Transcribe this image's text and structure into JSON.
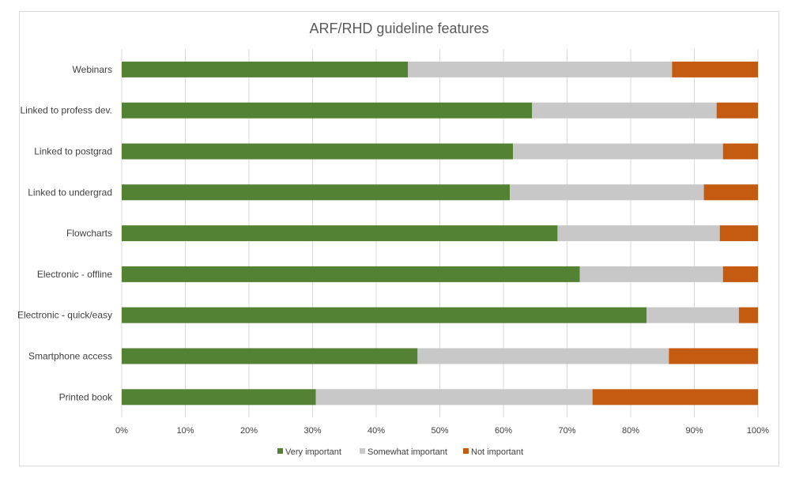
{
  "chart_data": {
    "type": "bar",
    "orientation": "horizontal",
    "stacked": "100%",
    "title": "ARF/RHD guideline features",
    "categories": [
      "Webinars",
      "Linked to profess dev.",
      "Linked to postgrad",
      "Linked to undergrad",
      "Flowcharts",
      "Electronic - offline",
      "Electronic - quick/easy",
      "Smartphone access",
      "Printed book"
    ],
    "series": [
      {
        "name": "Very important",
        "color": "#548235",
        "values": [
          45,
          64.5,
          61.5,
          61,
          68.5,
          72,
          82.5,
          46.5,
          30.5
        ]
      },
      {
        "name": "Somewhat important",
        "color": "#c8c8c8",
        "values": [
          41.5,
          29,
          33,
          30.5,
          25.5,
          22.5,
          14.5,
          39.5,
          43.5
        ]
      },
      {
        "name": "Not important",
        "color": "#c55a11",
        "values": [
          13.5,
          6.5,
          5.5,
          8.5,
          6,
          5.5,
          3,
          14,
          26
        ]
      }
    ],
    "xlim": [
      0,
      100
    ],
    "x_ticks": [
      "0%",
      "10%",
      "20%",
      "30%",
      "40%",
      "50%",
      "60%",
      "70%",
      "80%",
      "90%",
      "100%"
    ],
    "grid": true,
    "legend": "bottom"
  }
}
